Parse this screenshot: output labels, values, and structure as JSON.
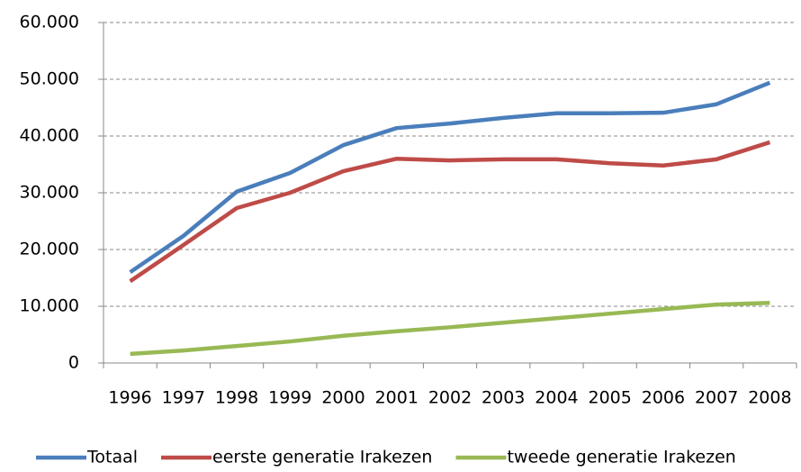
{
  "chart_data": {
    "type": "line",
    "categories": [
      "1996",
      "1997",
      "1998",
      "1999",
      "2000",
      "2001",
      "2002",
      "2003",
      "2004",
      "2005",
      "2006",
      "2007",
      "2008"
    ],
    "series": [
      {
        "name": "Totaal",
        "color": "#4a7ebb",
        "values": [
          16000,
          22400,
          30200,
          33500,
          38400,
          41400,
          42200,
          43200,
          44000,
          44000,
          44100,
          45600,
          49400
        ]
      },
      {
        "name": "eerste generatie Irakezen",
        "color": "#be4b48",
        "values": [
          14400,
          20800,
          27300,
          30000,
          33800,
          36000,
          35700,
          35900,
          35900,
          35200,
          34800,
          35900,
          38900
        ]
      },
      {
        "name": "tweede generatie Irakezen",
        "color": "#98b954",
        "values": [
          1600,
          2200,
          3000,
          3800,
          4800,
          5600,
          6300,
          7100,
          7900,
          8700,
          9500,
          10300,
          10600
        ]
      }
    ],
    "ylim": [
      0,
      60000
    ],
    "yticks": [
      0,
      {
        "value": 10000,
        "label": "10.000"
      },
      {
        "value": 20000,
        "label": "20.000"
      },
      {
        "value": 30000,
        "label": "30.000"
      },
      {
        "value": 40000,
        "label": "40.000"
      },
      {
        "value": 50000,
        "label": "50.000"
      },
      {
        "value": 60000,
        "label": "60.000"
      }
    ],
    "grid": true,
    "legend": "bottom"
  }
}
